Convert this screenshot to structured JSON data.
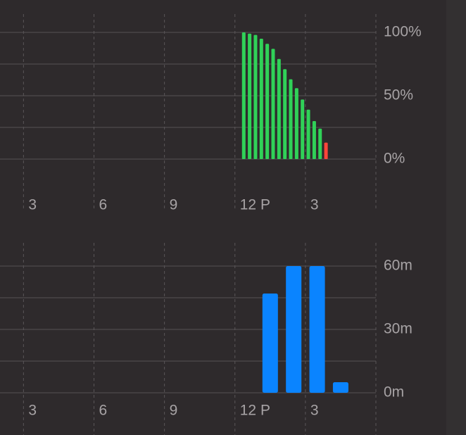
{
  "chart_data": [
    {
      "type": "bar",
      "xlim": [
        2,
        18
      ],
      "xticks": [
        3,
        6,
        9,
        {
          "value": 12,
          "label": "12 P"
        },
        {
          "value": 15,
          "label": "3"
        }
      ],
      "ylim": [
        0,
        100
      ],
      "yticks": [
        {
          "value": 0,
          "label": "0%"
        },
        {
          "value": 50,
          "label": "50%"
        },
        {
          "value": 100,
          "label": "100%"
        }
      ],
      "x": [
        12.375,
        12.625,
        12.875,
        13.125,
        13.375,
        13.625,
        13.875,
        14.125,
        14.375,
        14.625,
        14.875,
        15.125,
        15.375,
        15.625,
        15.875
      ],
      "values": [
        100,
        99,
        98,
        95,
        91,
        87,
        79,
        71,
        63,
        56,
        47,
        39,
        30,
        24,
        13
      ],
      "colors": [
        "#30d158",
        "#30d158",
        "#30d158",
        "#30d158",
        "#30d158",
        "#30d158",
        "#30d158",
        "#30d158",
        "#30d158",
        "#30d158",
        "#30d158",
        "#30d158",
        "#30d158",
        "#30d158",
        "#ff453a"
      ],
      "bar_width": 0.15,
      "grid": true
    },
    {
      "type": "bar",
      "xlim": [
        2,
        18
      ],
      "xticks": [
        3,
        6,
        9,
        {
          "value": 12,
          "label": "12 P"
        },
        {
          "value": 15,
          "label": "3"
        }
      ],
      "ylim": [
        0,
        60
      ],
      "yticks": [
        {
          "value": 0,
          "label": "0m"
        },
        {
          "value": 30,
          "label": "30m"
        },
        {
          "value": 60,
          "label": "60m"
        }
      ],
      "x": [
        13.5,
        14.5,
        15.5,
        16.5
      ],
      "values": [
        47,
        60,
        60,
        5
      ],
      "colors": [
        "#0a84ff",
        "#0a84ff",
        "#0a84ff",
        "#0a84ff"
      ],
      "bar_width": 0.66,
      "grid": true
    }
  ]
}
